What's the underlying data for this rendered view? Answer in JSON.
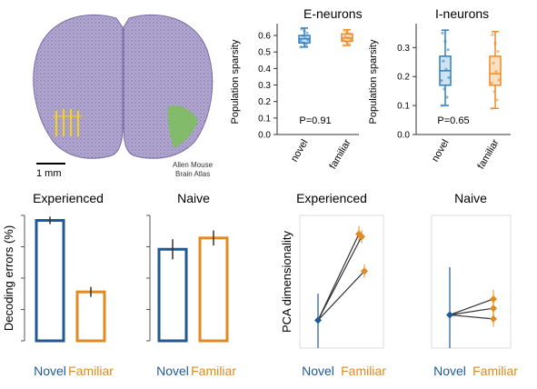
{
  "atlas": {
    "scale_label": "1 mm",
    "credit_line1": "Allen Mouse",
    "credit_line2": "Brain Atlas"
  },
  "colors": {
    "novel": "#1f5a96",
    "familiar": "#e08a20",
    "box_blue": "#2f7fc0",
    "box_orange": "#f08a24",
    "atlas_tissue": "#9b8fc0",
    "atlas_highlight": "#7bbf5a",
    "probe": "#f2d21b"
  },
  "chart_data": [
    {
      "type": "box",
      "title": "E-neurons",
      "ylabel": "Population sparsity",
      "categories": [
        "novel",
        "familiar"
      ],
      "ylim": [
        0,
        0.65
      ],
      "yticks": [
        "0.0",
        "0.1",
        "0.2",
        "0.3",
        "0.4",
        "0.5",
        "0.6"
      ],
      "boxes": [
        {
          "min": 0.53,
          "q1": 0.555,
          "median": 0.58,
          "q3": 0.6,
          "max": 0.645
        },
        {
          "min": 0.54,
          "q1": 0.565,
          "median": 0.585,
          "q3": 0.61,
          "max": 0.635
        }
      ],
      "annotation": "P=0.91"
    },
    {
      "type": "box",
      "title": "I-neurons",
      "ylabel": "Population sparsity",
      "categories": [
        "novel",
        "familiar"
      ],
      "ylim": [
        0,
        0.37
      ],
      "yticks": [
        "0.0",
        "0.1",
        "0.2",
        "0.3"
      ],
      "boxes": [
        {
          "min": 0.1,
          "q1": 0.17,
          "median": 0.22,
          "q3": 0.27,
          "max": 0.36
        },
        {
          "min": 0.09,
          "q1": 0.17,
          "median": 0.21,
          "q3": 0.27,
          "max": 0.355
        }
      ],
      "annotation": "P=0.65"
    },
    {
      "type": "bar",
      "title": "Experienced",
      "ylabel": "Decoding errors (%)",
      "categories": [
        "Novel",
        "Familiar"
      ],
      "ylim": [
        0,
        100
      ],
      "values": [
        96,
        39
      ],
      "errors": [
        3,
        4
      ]
    },
    {
      "type": "bar",
      "title": "Naive",
      "ylabel": "",
      "categories": [
        "Novel",
        "Familiar"
      ],
      "ylim": [
        0,
        100
      ],
      "values": [
        73,
        82
      ],
      "errors": [
        8,
        6
      ]
    },
    {
      "type": "line",
      "title": "Experienced",
      "ylabel": "PCA dimensionality",
      "categories": [
        "Novel",
        "Familiar"
      ],
      "ylim": [
        0,
        100
      ],
      "novel": {
        "value": 21,
        "error_low": 0,
        "error_high": 41
      },
      "familiar_points": [
        {
          "value": 86,
          "error": 6
        },
        {
          "value": 84,
          "error": 5
        },
        {
          "value": 58,
          "error": 5
        }
      ]
    },
    {
      "type": "line",
      "title": "Naive",
      "ylabel": "",
      "categories": [
        "Novel",
        "Familiar"
      ],
      "ylim": [
        0,
        100
      ],
      "novel": {
        "value": 25,
        "error_low": 0,
        "error_high": 61
      },
      "familiar_points": [
        {
          "value": 37,
          "error": 7
        },
        {
          "value": 30,
          "error": 6
        },
        {
          "value": 22,
          "error": 6
        }
      ]
    }
  ]
}
